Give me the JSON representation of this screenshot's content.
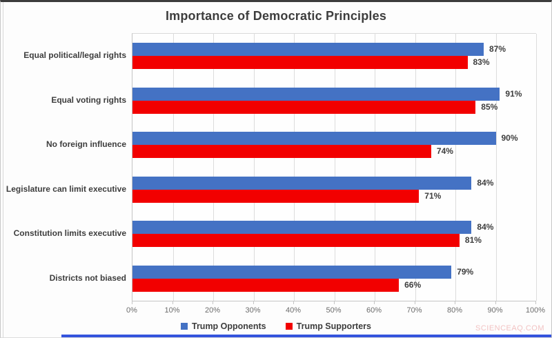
{
  "title": "Importance of Democratic Principles",
  "watermark": "SCIENCEAQ.COM",
  "colors": {
    "opponents_blue": "#4472c4",
    "supporters_red": "#f20000",
    "bottom_strip_blue": "#3353dd",
    "watermark_pink": "#f2c3c3"
  },
  "chart_data": {
    "type": "bar",
    "orientation": "horizontal",
    "title": "Importance of Democratic Principles",
    "categories": [
      "Equal political/legal rights",
      "Equal voting rights",
      "No foreign influence",
      "Legislature can limit executive",
      "Constitution limits executive",
      "Districts not biased"
    ],
    "series": [
      {
        "name": "Trump Opponents",
        "color": "#4472c4",
        "values": [
          87,
          91,
          90,
          84,
          84,
          79
        ]
      },
      {
        "name": "Trump Supporters",
        "color": "#f20000",
        "values": [
          83,
          85,
          74,
          71,
          81,
          66
        ]
      }
    ],
    "value_suffix": "%",
    "xlim": [
      0,
      100
    ],
    "x_ticks": [
      "0%",
      "10%",
      "20%",
      "30%",
      "40%",
      "50%",
      "60%",
      "70%",
      "80%",
      "90%",
      "100%"
    ],
    "grid": "vertical",
    "legend_position": "bottom",
    "data_labels": true
  }
}
